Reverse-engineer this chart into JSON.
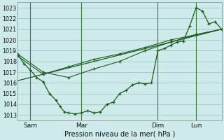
{
  "xlabel": "Pression niveau de la mer( hPa )",
  "ylim": [
    1012.5,
    1023.5
  ],
  "yticks": [
    1013,
    1014,
    1015,
    1016,
    1017,
    1018,
    1019,
    1020,
    1021,
    1022,
    1023
  ],
  "background_color": "#ceeaea",
  "grid_color": "#a0c8c8",
  "line_color": "#1a5c1a",
  "xlim": [
    0,
    96
  ],
  "day_ticks": [
    6,
    30,
    66,
    84
  ],
  "day_labels": [
    "Sam",
    "Mar",
    "Dim",
    "Lun"
  ],
  "line1_x": [
    0,
    3,
    6,
    9,
    12,
    15,
    18,
    20,
    22,
    24,
    27,
    30,
    33,
    36,
    39,
    42,
    45,
    48,
    51,
    54,
    57,
    60,
    63,
    66,
    69,
    72,
    75,
    78,
    81,
    84,
    87,
    90,
    93,
    96
  ],
  "line1_y": [
    1018.7,
    1017.8,
    1017.2,
    1016.5,
    1016.1,
    1015.0,
    1014.4,
    1013.8,
    1013.3,
    1013.2,
    1013.1,
    1013.2,
    1013.4,
    1013.2,
    1013.3,
    1014.0,
    1014.2,
    1015.0,
    1015.3,
    1015.8,
    1016.0,
    1015.9,
    1016.0,
    1019.0,
    1019.2,
    1019.5,
    1019.8,
    1019.9,
    1021.3,
    1023.0,
    1022.7,
    1021.5,
    1021.7,
    1021.0
  ],
  "line2_x": [
    0,
    12,
    24,
    36,
    48,
    60,
    72,
    84,
    96
  ],
  "line2_y": [
    1018.7,
    1017.0,
    1016.5,
    1017.3,
    1018.0,
    1019.0,
    1019.8,
    1020.5,
    1021.0
  ],
  "line3_x": [
    0,
    12,
    24,
    36,
    48,
    60,
    72,
    84,
    96
  ],
  "line3_y": [
    1018.5,
    1016.8,
    1017.5,
    1018.2,
    1018.7,
    1019.3,
    1020.0,
    1020.5,
    1021.0
  ],
  "line4_x": [
    0,
    96
  ],
  "line4_y": [
    1016.2,
    1021.0
  ]
}
